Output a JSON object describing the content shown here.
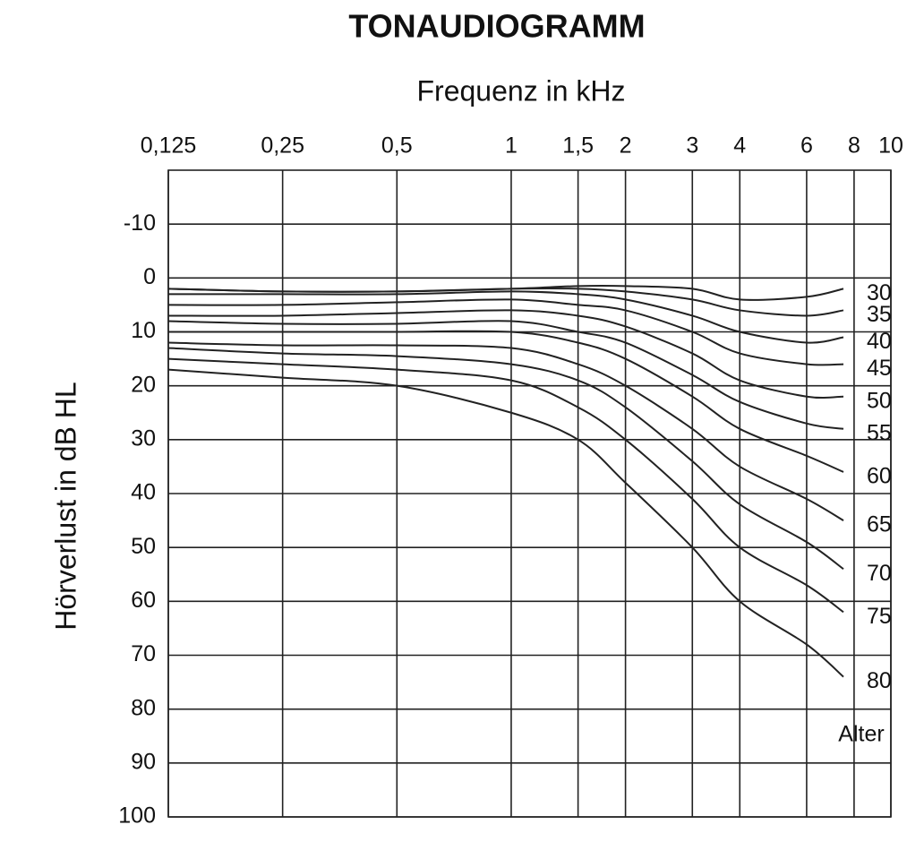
{
  "chart_data": {
    "type": "line",
    "title": "TONAUDIOGRAMM",
    "x_label": "Frequenz in kHz",
    "y_label": "Hörverlust in dB HL",
    "annotation": "Alter",
    "x_scale": "log",
    "x_axis_position": "top",
    "y_inverted": true,
    "grid": true,
    "color": "#222222",
    "xlim": [
      0.125,
      10
    ],
    "xticks": [
      {
        "value": 0.125,
        "label": "0,125"
      },
      {
        "value": 0.25,
        "label": "0,25"
      },
      {
        "value": 0.5,
        "label": "0,5"
      },
      1,
      {
        "value": 1.5,
        "label": "1,5"
      },
      2,
      3,
      4,
      6,
      8,
      10
    ],
    "ylim": [
      -20,
      100
    ],
    "yticks": [
      -10,
      0,
      10,
      20,
      30,
      40,
      50,
      60,
      70,
      80,
      90,
      100
    ],
    "x": [
      0.125,
      0.25,
      0.5,
      1,
      1.5,
      2,
      3,
      4,
      6,
      7.5
    ],
    "series": [
      {
        "name": "30",
        "values": [
          2,
          2.5,
          2.5,
          2,
          1.5,
          1.5,
          2,
          4,
          3.5,
          2
        ]
      },
      {
        "name": "35",
        "values": [
          2,
          2.5,
          2.5,
          2,
          2,
          2.5,
          4,
          6,
          7,
          6
        ]
      },
      {
        "name": "40",
        "values": [
          3,
          3,
          3,
          2.5,
          3,
          4,
          7,
          10,
          12,
          11
        ]
      },
      {
        "name": "45",
        "values": [
          5,
          5,
          4.5,
          4,
          5,
          6,
          10,
          14,
          16,
          16
        ]
      },
      {
        "name": "50",
        "values": [
          7,
          7,
          6.5,
          6,
          7,
          9,
          14,
          19,
          22,
          22
        ]
      },
      {
        "name": "55",
        "values": [
          8,
          8.5,
          8.5,
          8,
          10,
          12,
          18,
          23,
          27,
          28
        ]
      },
      {
        "name": "60",
        "values": [
          10,
          10,
          10,
          10,
          12,
          15,
          22,
          28,
          33,
          36
        ]
      },
      {
        "name": "65",
        "values": [
          12,
          12.5,
          12.5,
          13,
          16,
          20,
          28,
          35,
          41,
          45
        ]
      },
      {
        "name": "70",
        "values": [
          13,
          14,
          14.5,
          16,
          19,
          24,
          34,
          42,
          49,
          54
        ]
      },
      {
        "name": "75",
        "values": [
          15,
          16,
          17,
          19,
          24,
          30,
          41,
          50,
          57,
          62
        ]
      },
      {
        "name": "80",
        "values": [
          17,
          18.5,
          20,
          25,
          30,
          38,
          50,
          60,
          68,
          74
        ]
      }
    ]
  }
}
